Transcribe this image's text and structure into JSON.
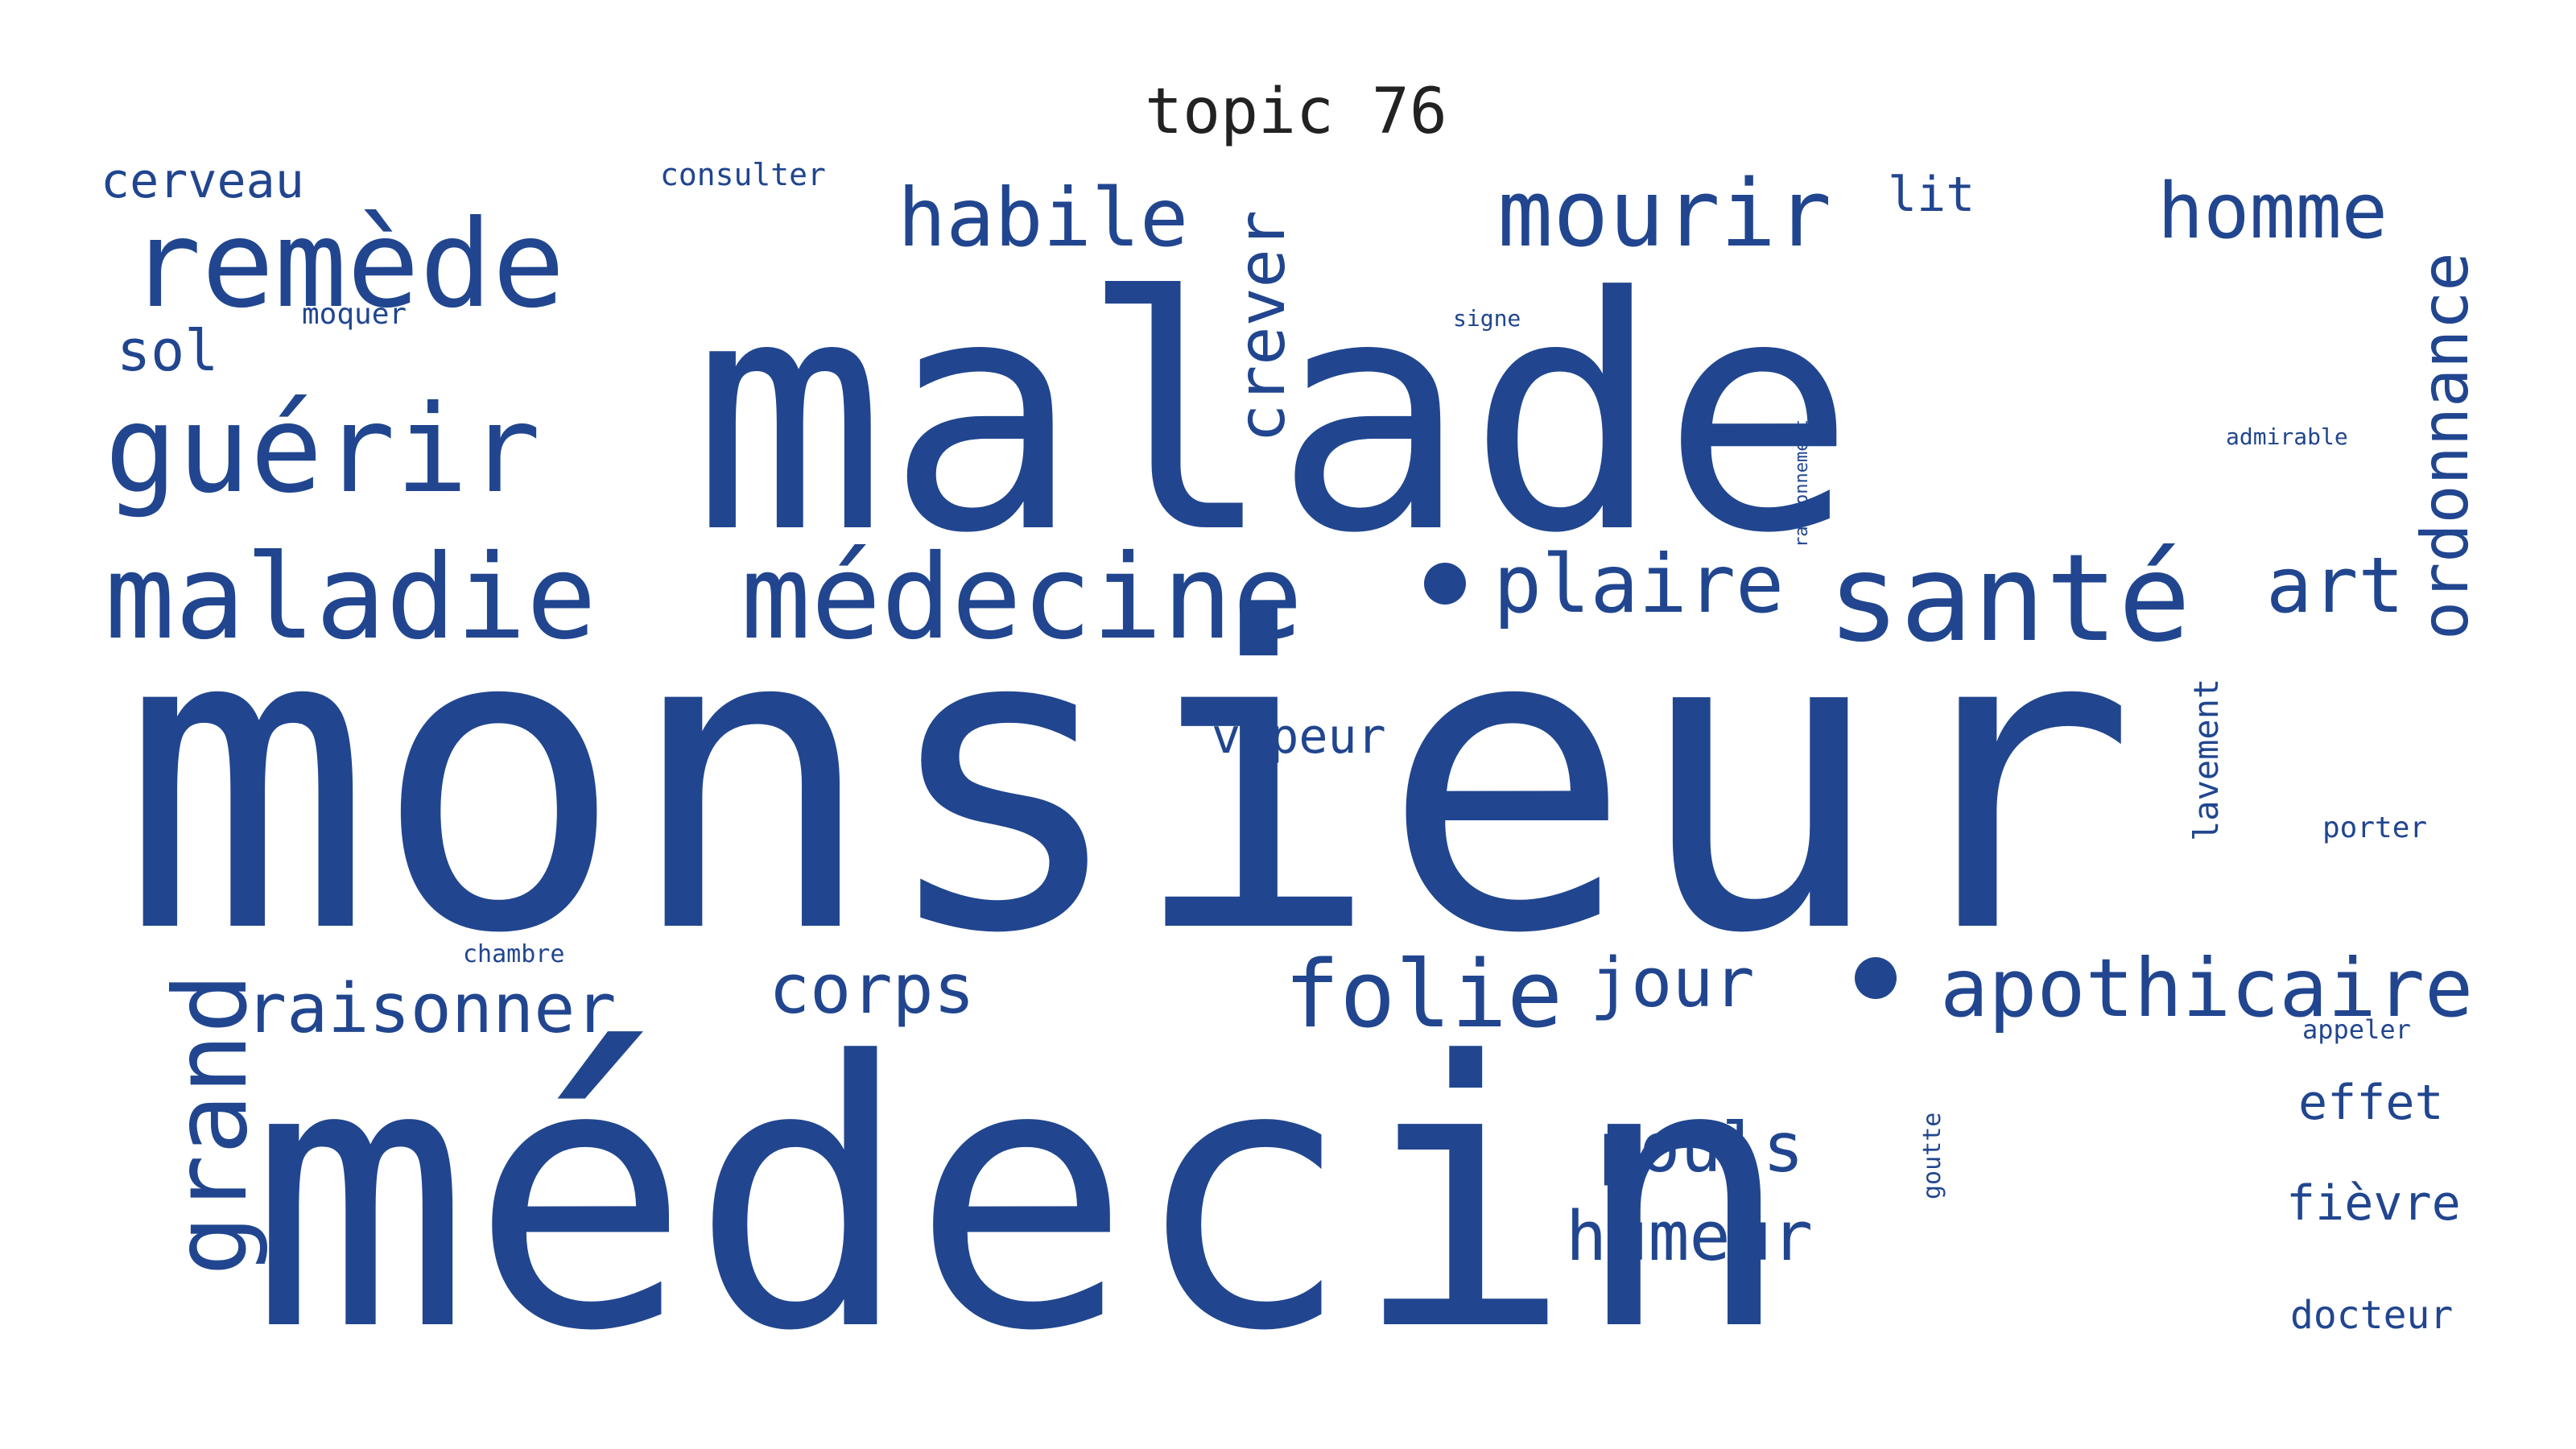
{
  "title": "topic 76",
  "colors": {
    "background": "#ffffff",
    "word": "#21468f",
    "title": "#222222"
  },
  "words": [
    {
      "text": "monsieur",
      "weight": 1.0
    },
    {
      "text": "médecin",
      "weight": 0.96
    },
    {
      "text": "malade",
      "weight": 0.88
    },
    {
      "text": "médecine",
      "weight": 0.34
    },
    {
      "text": "maladie",
      "weight": 0.34
    },
    {
      "text": "guérir",
      "weight": 0.34
    },
    {
      "text": "remède",
      "weight": 0.34
    },
    {
      "text": "santé",
      "weight": 0.3
    },
    {
      "text": "folie",
      "weight": 0.24
    },
    {
      "text": "plaire",
      "weight": 0.22
    },
    {
      "text": "mourir",
      "weight": 0.22
    },
    {
      "text": "apothicaire",
      "weight": 0.2
    },
    {
      "text": "habile",
      "weight": 0.2
    },
    {
      "text": "grand",
      "weight": 0.2
    },
    {
      "text": "homme",
      "weight": 0.18
    },
    {
      "text": "art",
      "weight": 0.18
    },
    {
      "text": "ordonnance",
      "weight": 0.18
    },
    {
      "text": "raisonner",
      "weight": 0.17
    },
    {
      "text": "crever",
      "weight": 0.17
    },
    {
      "text": "pouls",
      "weight": 0.17
    },
    {
      "text": "humeur",
      "weight": 0.17
    },
    {
      "text": "corps",
      "weight": 0.17
    },
    {
      "text": "jour",
      "weight": 0.16
    },
    {
      "text": "sol",
      "weight": 0.14
    },
    {
      "text": "effet",
      "weight": 0.13
    },
    {
      "text": "fièvre",
      "weight": 0.13
    },
    {
      "text": "cerveau",
      "weight": 0.13
    },
    {
      "text": "vapeur",
      "weight": 0.13
    },
    {
      "text": "lit",
      "weight": 0.12
    },
    {
      "text": "docteur",
      "weight": 0.1
    },
    {
      "text": "lavement",
      "weight": 0.09
    },
    {
      "text": "consulter",
      "weight": 0.08
    },
    {
      "text": "moquer",
      "weight": 0.08
    },
    {
      "text": "porter",
      "weight": 0.08
    },
    {
      "text": "appeler",
      "weight": 0.07
    },
    {
      "text": "goutte",
      "weight": 0.07
    },
    {
      "text": "chambre",
      "weight": 0.06
    },
    {
      "text": "admirable",
      "weight": 0.06
    },
    {
      "text": "signe",
      "weight": 0.06
    },
    {
      "text": "raisonnement",
      "weight": 0.05
    }
  ]
}
